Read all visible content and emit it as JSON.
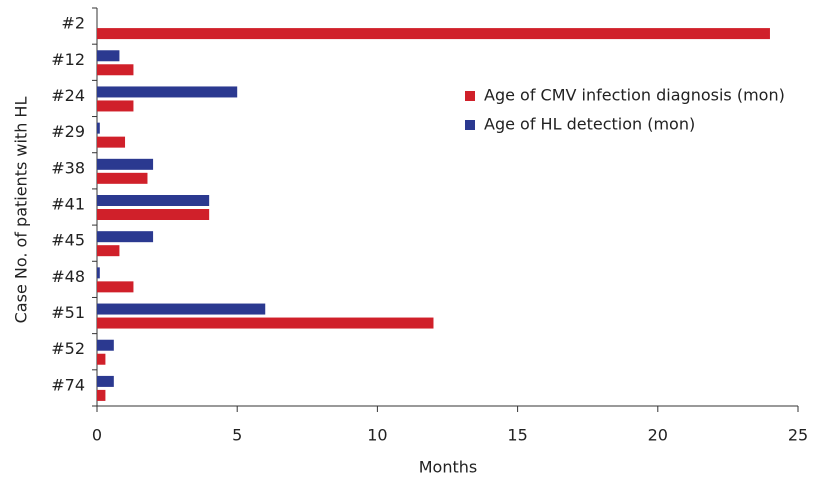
{
  "chart_data": {
    "type": "bar",
    "orientation": "horizontal",
    "x_label": "Months",
    "y_label": "Case No. of patients with HL",
    "categories": [
      "#2",
      "#12",
      "#24",
      "#29",
      "#38",
      "#41",
      "#45",
      "#48",
      "#51",
      "#52",
      "#74"
    ],
    "series": [
      {
        "name": "Age of CMV infection diagnosis (mon)",
        "color": "#d0202a",
        "values": [
          24,
          1.3,
          1.3,
          1,
          1.8,
          4,
          0.8,
          1.3,
          12,
          0.3,
          0.3
        ]
      },
      {
        "name": "Age of HL detection (mon)",
        "color": "#2b3990",
        "values": [
          null,
          0.8,
          5,
          0.1,
          2,
          4,
          2,
          0.1,
          6,
          0.6,
          0.6
        ]
      }
    ],
    "xlim": [
      0,
      25
    ],
    "xticks": [
      0,
      5,
      10,
      15,
      20,
      25
    ],
    "grid": false,
    "legend": "upper right"
  }
}
